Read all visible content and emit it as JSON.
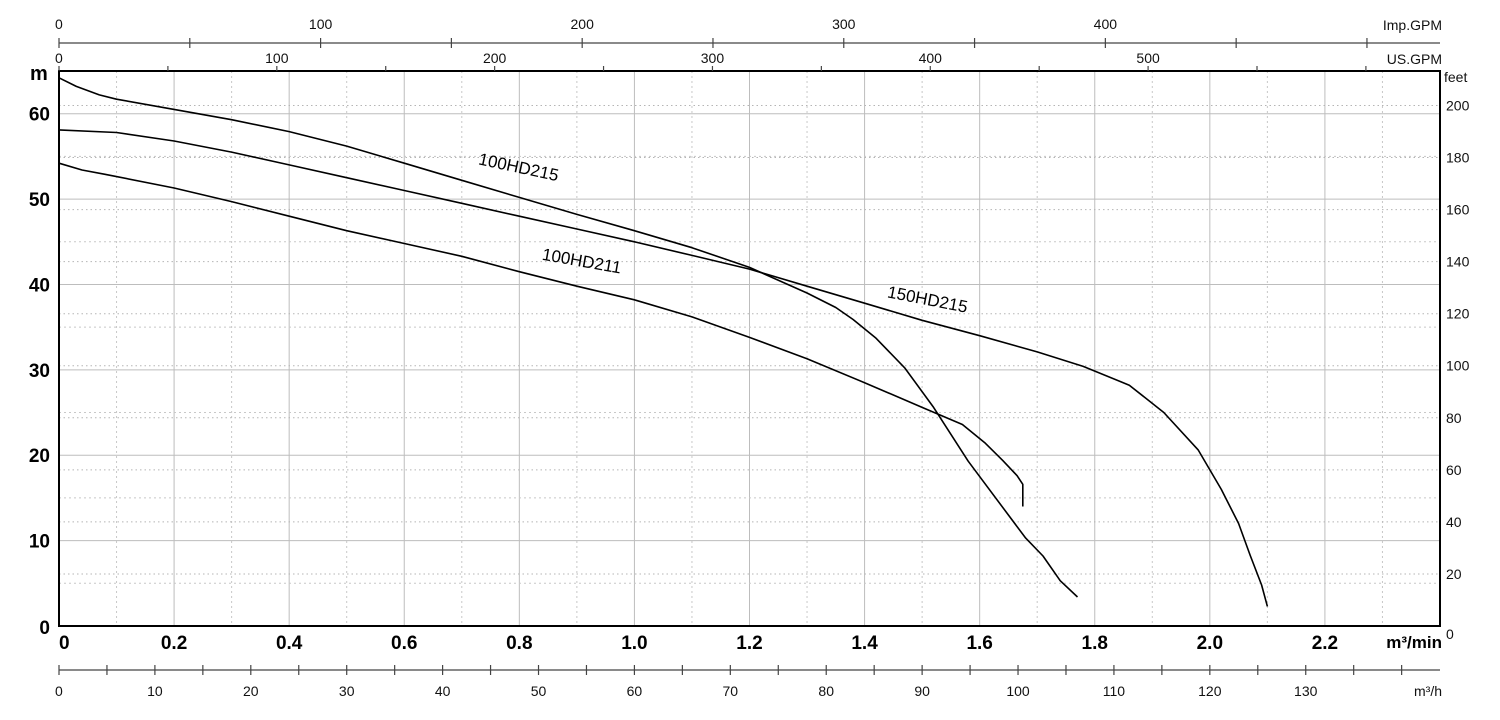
{
  "chart_data": {
    "type": "line",
    "x": {
      "unit": "m³/min",
      "range": [
        0,
        2.4
      ],
      "ticks": [
        "0",
        "0.2",
        "0.4",
        "0.6",
        "0.8",
        "1.0",
        "1.2",
        "1.4",
        "1.6",
        "1.8",
        "2.0",
        "2.2"
      ],
      "grid_step": 0.1
    },
    "y": {
      "unit": "m",
      "range": [
        0,
        65
      ],
      "ticks": [
        "0",
        "10",
        "20",
        "30",
        "40",
        "50",
        "60"
      ],
      "grid_step": 5
    },
    "y2": {
      "unit": "feet",
      "ticks": [
        "0",
        "20",
        "40",
        "60",
        "80",
        "100",
        "120",
        "140",
        "160",
        "180",
        "200"
      ],
      "ticks_value": [
        0,
        20,
        40,
        60,
        80,
        100,
        120,
        140,
        160,
        180,
        200
      ]
    },
    "x_top_imp": {
      "unit": "Imp.GPM",
      "ticks": [
        "0",
        "100",
        "200",
        "300",
        "400"
      ],
      "ticks_value": [
        0,
        100,
        200,
        300,
        400
      ],
      "minor_step": 50
    },
    "x_top_us": {
      "unit": "US.GPM",
      "ticks": [
        "0",
        "100",
        "200",
        "300",
        "400",
        "500"
      ],
      "ticks_value": [
        0,
        100,
        200,
        300,
        400,
        500
      ],
      "minor_step": 50
    },
    "x_bottom_h": {
      "unit": "m³/h",
      "ticks": [
        "0",
        "10",
        "20",
        "30",
        "40",
        "50",
        "60",
        "70",
        "80",
        "90",
        "100",
        "110",
        "120",
        "130"
      ],
      "ticks_value": [
        0,
        10,
        20,
        30,
        40,
        50,
        60,
        70,
        80,
        90,
        100,
        110,
        120,
        130
      ],
      "minor_step": 5
    },
    "grid": true,
    "series": [
      {
        "name": "100HD215",
        "points": [
          [
            0,
            64.2
          ],
          [
            0.03,
            63.2
          ],
          [
            0.07,
            62.2
          ],
          [
            0.1,
            61.7
          ],
          [
            0.2,
            60.5
          ],
          [
            0.3,
            59.3
          ],
          [
            0.4,
            57.9
          ],
          [
            0.5,
            56.2
          ],
          [
            0.6,
            54.2
          ],
          [
            0.7,
            52.2
          ],
          [
            0.8,
            50.2
          ],
          [
            0.9,
            48.2
          ],
          [
            1.0,
            46.3
          ],
          [
            1.1,
            44.3
          ],
          [
            1.2,
            42.0
          ],
          [
            1.3,
            39.0
          ],
          [
            1.35,
            37.3
          ],
          [
            1.38,
            35.9
          ],
          [
            1.42,
            33.7
          ],
          [
            1.47,
            30.2
          ],
          [
            1.52,
            25.6
          ],
          [
            1.58,
            19.3
          ],
          [
            1.65,
            13.0
          ],
          [
            1.68,
            10.3
          ],
          [
            1.71,
            8.2
          ],
          [
            1.74,
            5.3
          ],
          [
            1.77,
            3.4
          ]
        ]
      },
      {
        "name": "150HD215",
        "points": [
          [
            0,
            58.1
          ],
          [
            0.1,
            57.8
          ],
          [
            0.2,
            56.8
          ],
          [
            0.3,
            55.5
          ],
          [
            0.4,
            54.0
          ],
          [
            0.5,
            52.5
          ],
          [
            0.6,
            51.0
          ],
          [
            0.7,
            49.5
          ],
          [
            0.8,
            48.0
          ],
          [
            0.9,
            46.5
          ],
          [
            1.0,
            45.0
          ],
          [
            1.1,
            43.4
          ],
          [
            1.2,
            41.8
          ],
          [
            1.3,
            39.8
          ],
          [
            1.4,
            37.8
          ],
          [
            1.5,
            35.8
          ],
          [
            1.6,
            34.0
          ],
          [
            1.7,
            32.1
          ],
          [
            1.78,
            30.4
          ],
          [
            1.86,
            28.2
          ],
          [
            1.92,
            25.0
          ],
          [
            1.98,
            20.6
          ],
          [
            2.02,
            16.0
          ],
          [
            2.05,
            12.0
          ],
          [
            2.07,
            8.3
          ],
          [
            2.09,
            4.8
          ],
          [
            2.1,
            2.3
          ]
        ]
      },
      {
        "name": "100HD211",
        "points": [
          [
            0,
            54.2
          ],
          [
            0.04,
            53.4
          ],
          [
            0.08,
            52.9
          ],
          [
            0.2,
            51.3
          ],
          [
            0.3,
            49.7
          ],
          [
            0.4,
            48.0
          ],
          [
            0.5,
            46.3
          ],
          [
            0.6,
            44.8
          ],
          [
            0.7,
            43.3
          ],
          [
            0.8,
            41.5
          ],
          [
            0.9,
            39.8
          ],
          [
            1.0,
            38.2
          ],
          [
            1.1,
            36.2
          ],
          [
            1.2,
            33.8
          ],
          [
            1.3,
            31.3
          ],
          [
            1.4,
            28.5
          ],
          [
            1.5,
            25.6
          ],
          [
            1.57,
            23.6
          ],
          [
            1.61,
            21.4
          ],
          [
            1.64,
            19.4
          ],
          [
            1.665,
            17.6
          ],
          [
            1.675,
            16.6
          ],
          [
            1.675,
            14.0
          ]
        ]
      }
    ],
    "annotations": [
      "100HD215",
      "150HD215",
      "100HD211"
    ]
  }
}
